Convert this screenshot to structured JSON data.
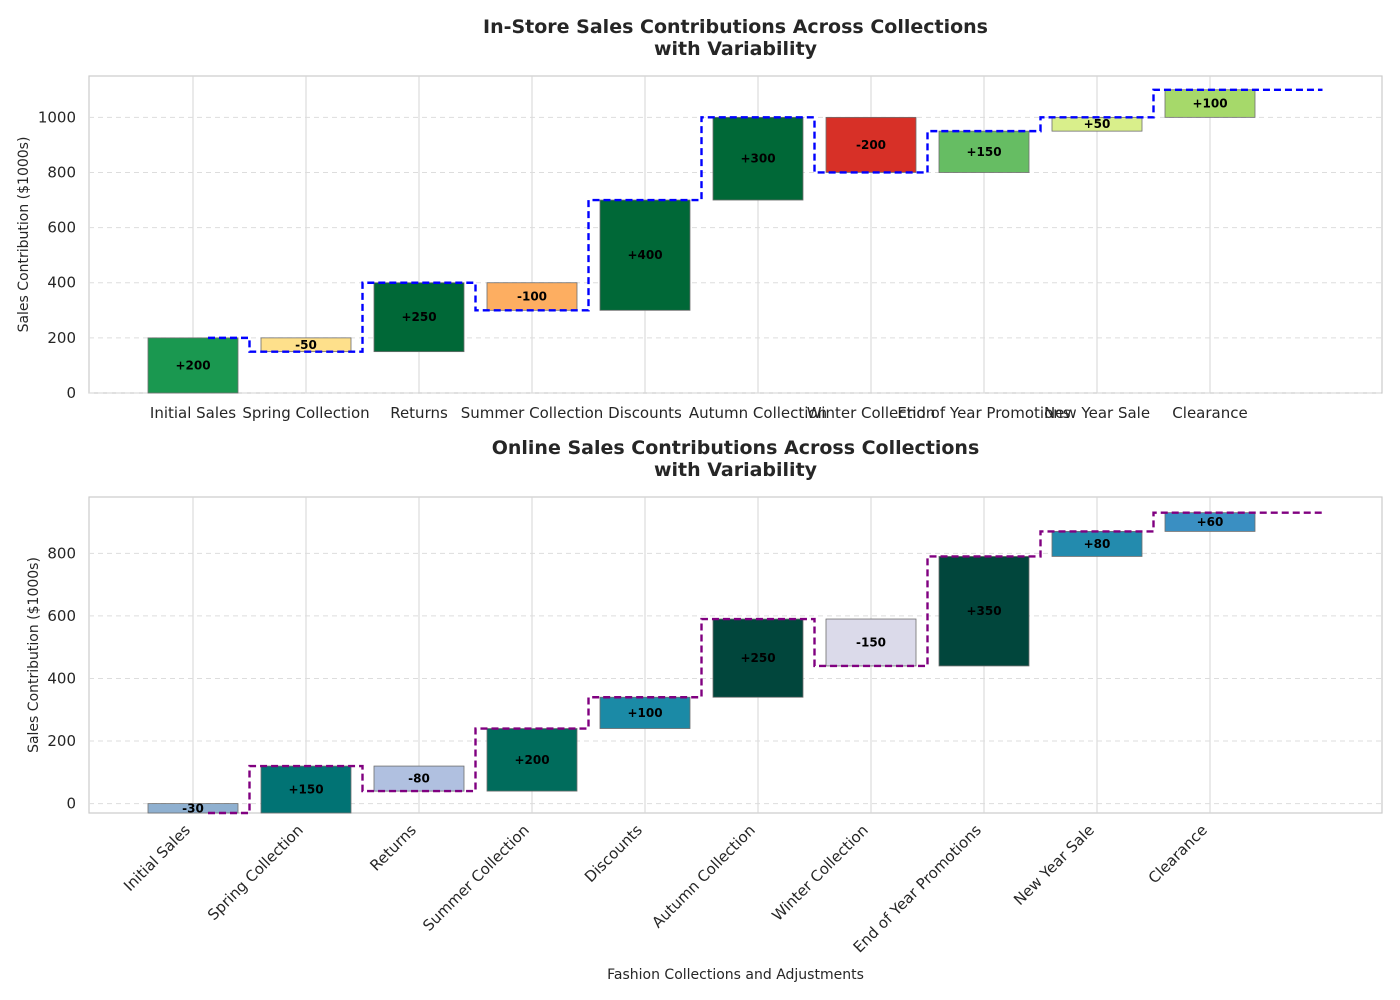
{
  "chart_data": [
    {
      "type": "waterfall",
      "title": "In-Store Sales Contributions Across Collections\nwith Variability",
      "ylabel": "Sales Contribution ($1000s)",
      "xlabel": "",
      "ylim": [
        0,
        1150
      ],
      "yticks": [
        0,
        200,
        400,
        600,
        800,
        1000
      ],
      "grid": true,
      "xtick_rotation": 0,
      "connector_color": "#0000ff",
      "categories": [
        "Initial Sales",
        "Spring Collection",
        "Returns",
        "Summer Collection",
        "Discounts",
        "Autumn Collection",
        "Winter Collection",
        "End of Year Promotions",
        "New Year Sale",
        "Clearance"
      ],
      "values": [
        200,
        -50,
        250,
        -100,
        400,
        300,
        -200,
        150,
        50,
        100
      ],
      "labels": [
        "+200",
        "-50",
        "+250",
        "-100",
        "+400",
        "+300",
        "-200",
        "+150",
        "+50",
        "+100"
      ],
      "colors": [
        "#1a9850",
        "#fee08b",
        "#006837",
        "#fdae61",
        "#006837",
        "#006837",
        "#d73027",
        "#66bd63",
        "#d9ef8b",
        "#a6d96a"
      ]
    },
    {
      "type": "waterfall",
      "title": "Online Sales Contributions Across Collections\nwith Variability",
      "ylabel": "Sales Contribution ($1000s)",
      "xlabel": "Fashion Collections and Adjustments",
      "ylim": [
        -30,
        980
      ],
      "yticks": [
        0,
        200,
        400,
        600,
        800
      ],
      "grid": true,
      "xtick_rotation": -45,
      "connector_color": "#800080",
      "categories": [
        "Initial Sales",
        "Spring Collection",
        "Returns",
        "Summer Collection",
        "Discounts",
        "Autumn Collection",
        "Winter Collection",
        "End of Year Promotions",
        "New Year Sale",
        "Clearance"
      ],
      "values": [
        -30,
        150,
        -80,
        200,
        100,
        250,
        -150,
        350,
        80,
        60
      ],
      "labels": [
        "-30",
        "+150",
        "-80",
        "+200",
        "+100",
        "+250",
        "-150",
        "+350",
        "+80",
        "+60"
      ],
      "colors": [
        "#8fb0d0",
        "#017374",
        "#b0c0e0",
        "#006c5c",
        "#1b8aa6",
        "#01463c",
        "#dbdaea",
        "#01463c",
        "#238bae",
        "#3a8fc2"
      ]
    }
  ]
}
